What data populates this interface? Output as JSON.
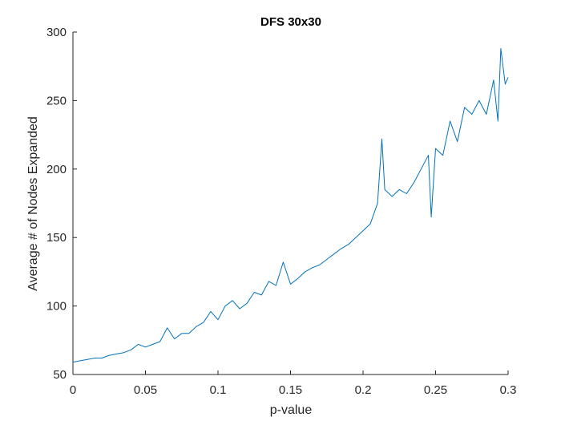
{
  "chart_data": {
    "type": "line",
    "title": "DFS 30x30",
    "xlabel": "p-value",
    "ylabel": "Average # of Nodes Expanded",
    "xlim": [
      0,
      0.3
    ],
    "ylim": [
      50,
      300
    ],
    "x_ticks": [
      0,
      0.05,
      0.1,
      0.15,
      0.2,
      0.25,
      0.3
    ],
    "x_tick_labels": [
      "0",
      "0.05",
      "0.1",
      "0.15",
      "0.2",
      "0.25",
      "0.3"
    ],
    "y_ticks": [
      50,
      100,
      150,
      200,
      250,
      300
    ],
    "y_tick_labels": [
      "50",
      "100",
      "150",
      "200",
      "250",
      "300"
    ],
    "grid": false,
    "series": [
      {
        "color": "#0072BD",
        "x": [
          0,
          0.005,
          0.01,
          0.015,
          0.02,
          0.025,
          0.03,
          0.035,
          0.04,
          0.045,
          0.05,
          0.055,
          0.06,
          0.065,
          0.07,
          0.075,
          0.08,
          0.085,
          0.09,
          0.095,
          0.1,
          0.105,
          0.11,
          0.115,
          0.12,
          0.125,
          0.13,
          0.135,
          0.14,
          0.145,
          0.15,
          0.155,
          0.16,
          0.165,
          0.17,
          0.175,
          0.18,
          0.185,
          0.19,
          0.195,
          0.2,
          0.205,
          0.21,
          0.213,
          0.215,
          0.22,
          0.225,
          0.23,
          0.235,
          0.24,
          0.245,
          0.247,
          0.25,
          0.255,
          0.26,
          0.265,
          0.27,
          0.275,
          0.28,
          0.285,
          0.29,
          0.293,
          0.295,
          0.298,
          0.3
        ],
        "y": [
          59,
          60,
          61,
          62,
          62,
          64,
          65,
          66,
          68,
          72,
          70,
          72,
          74,
          84,
          76,
          80,
          80,
          85,
          88,
          96,
          90,
          100,
          104,
          98,
          102,
          110,
          108,
          118,
          115,
          132,
          116,
          120,
          125,
          128,
          130,
          134,
          138,
          142,
          145,
          150,
          155,
          160,
          175,
          222,
          185,
          180,
          185,
          182,
          190,
          200,
          210,
          165,
          215,
          210,
          235,
          220,
          245,
          240,
          250,
          240,
          265,
          235,
          288,
          262,
          267
        ]
      }
    ]
  }
}
